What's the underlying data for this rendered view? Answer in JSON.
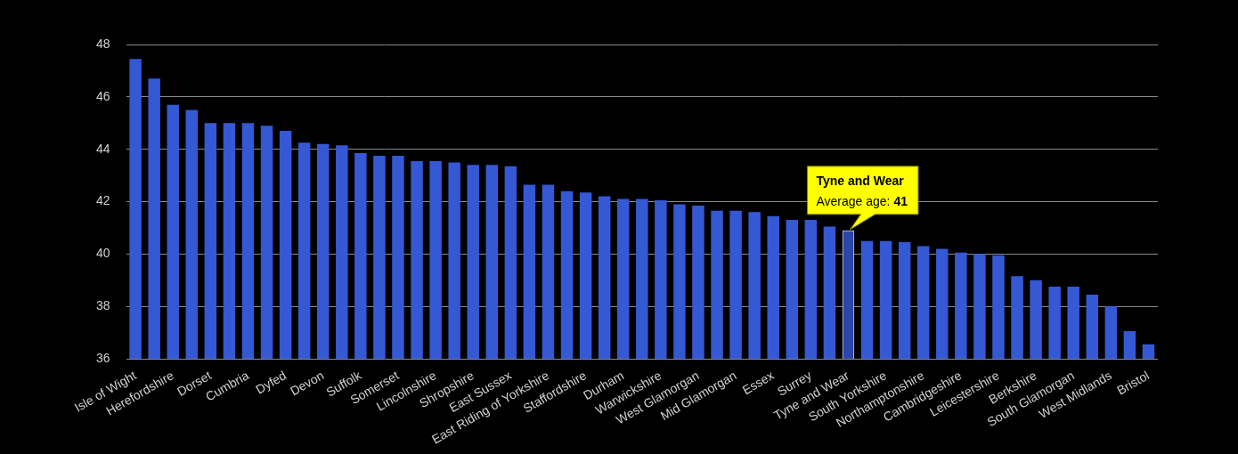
{
  "chart_data": {
    "type": "bar",
    "categories": [
      "Isle of Wight",
      null,
      "Herefordshire",
      null,
      "Dorset",
      null,
      "Cumbria",
      null,
      "Dyfed",
      null,
      "Devon",
      null,
      "Suffolk",
      null,
      "Somerset",
      null,
      "Lincolnshire",
      null,
      "Shropshire",
      null,
      "East Sussex",
      null,
      "East Riding of Yorkshire",
      null,
      "Staffordshire",
      null,
      "Durham",
      null,
      "Warwickshire",
      null,
      "West Glamorgan",
      null,
      "Mid Glamorgan",
      null,
      "Essex",
      null,
      "Surrey",
      null,
      "Tyne and Wear",
      null,
      "South Yorkshire",
      null,
      "Northamptonshire",
      null,
      "Cambridgeshire",
      null,
      "Leicestershire",
      null,
      "Berkshire",
      null,
      "South Glamorgan",
      null,
      "West Midlands",
      null,
      "Bristol"
    ],
    "values": [
      47.45,
      46.7,
      45.7,
      45.5,
      45.0,
      45.0,
      45.0,
      44.9,
      44.7,
      44.25,
      44.2,
      44.15,
      43.85,
      43.75,
      43.75,
      43.55,
      43.55,
      43.5,
      43.4,
      43.4,
      43.35,
      42.65,
      42.65,
      42.4,
      42.35,
      42.2,
      42.1,
      42.1,
      42.05,
      41.9,
      41.85,
      41.65,
      41.65,
      41.6,
      41.45,
      41.3,
      41.3,
      41.05,
      40.9,
      40.5,
      40.5,
      40.45,
      40.3,
      40.2,
      40.05,
      40.0,
      39.95,
      39.15,
      39.0,
      38.75,
      38.75,
      38.45,
      38.0,
      37.05,
      36.55
    ],
    "color": "#3558d4",
    "ylim": [
      36,
      48
    ],
    "yticks": [
      36,
      38,
      40,
      42,
      44,
      46,
      48
    ],
    "grid": true,
    "annotation": {
      "title": "Tyne and Wear",
      "label": "Average age:",
      "value": 41
    }
  }
}
